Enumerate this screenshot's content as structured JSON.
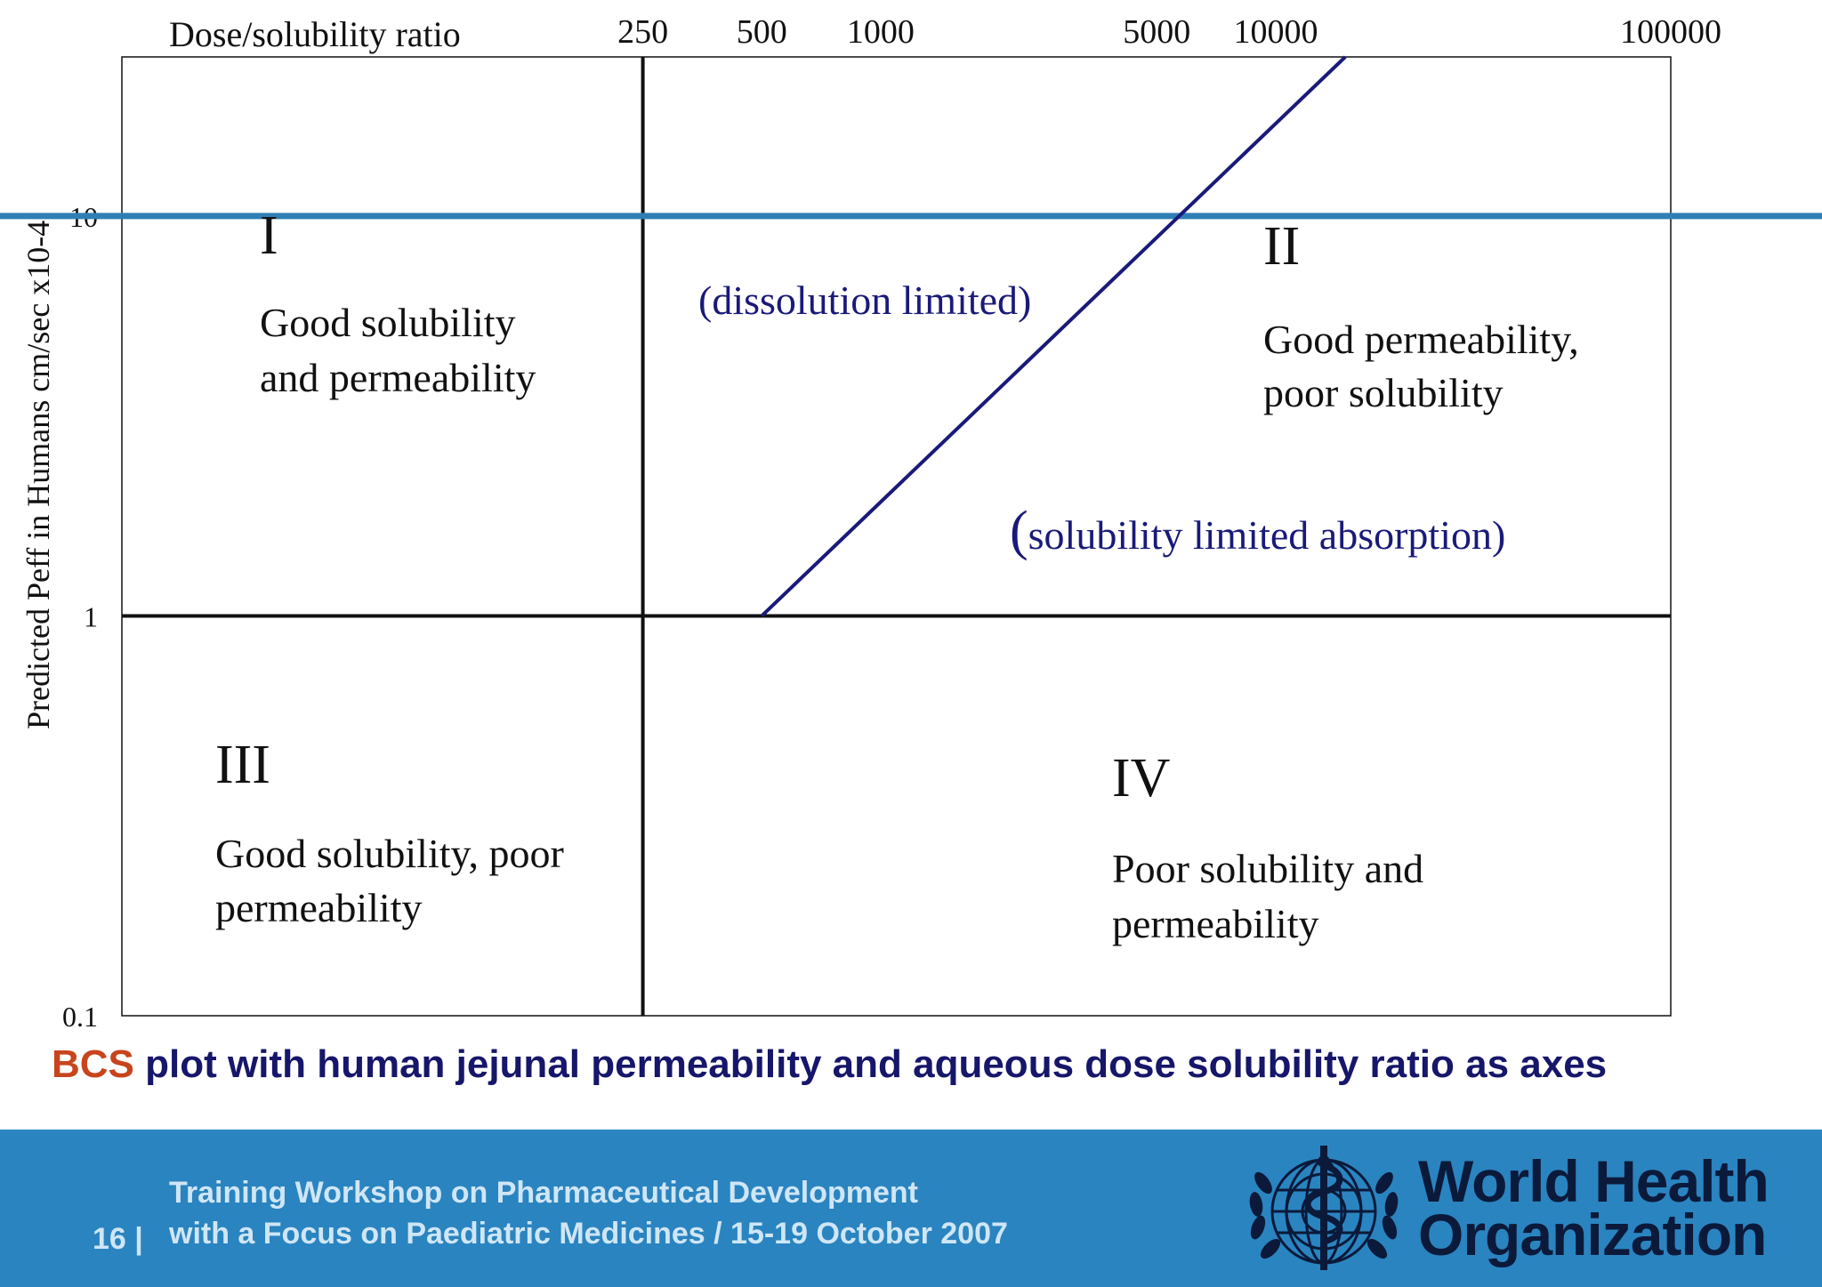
{
  "chart_data": {
    "type": "scatter",
    "title": "",
    "xlabel": "Dose/solubility ratio",
    "ylabel": "Predicted  Peff in Humans cm/sec x10-4",
    "x_scale": "log",
    "y_scale": "log",
    "x_ticks": [
      250,
      500,
      1000,
      5000,
      10000,
      100000
    ],
    "y_ticks": [
      0.1,
      1,
      10
    ],
    "xlim": [
      12,
      100000
    ],
    "ylim": [
      0.1,
      25
    ],
    "boundaries": {
      "vertical_x": 250,
      "horizontal_y": 1,
      "highlight_y": 10
    },
    "series": [
      {
        "name": "dissolution/solubility limit line",
        "x": [
          500,
          15000
        ],
        "y": [
          1,
          25
        ]
      }
    ],
    "quadrants": [
      {
        "id": "I",
        "label": "I",
        "line1": "Good solubility",
        "line2": "and permeability"
      },
      {
        "id": "II",
        "label": "II",
        "line1": "Good permeability,",
        "line2": "poor solubility"
      },
      {
        "id": "III",
        "label": "III",
        "line1": "Good solubility, poor",
        "line2": "permeability"
      },
      {
        "id": "IV",
        "label": "IV",
        "line1": "Poor solubility and",
        "line2": "permeability"
      }
    ],
    "annotations": {
      "dissolution": "(dissolution limited)",
      "solubility_paren": "(",
      "solubility": "solubility limited absorption)"
    },
    "colors": {
      "axis": "#111111",
      "diagonal": "#1a1a7a",
      "highlight": "#2f7fb5"
    }
  },
  "caption": {
    "acronym": "BCS",
    "text": " plot with human jejunal permeability and aqueous dose solubility ratio as axes"
  },
  "footer": {
    "line1": "Training Workshop on Pharmaceutical Development",
    "line2": "with a Focus on Paediatric Medicines / 15-19 October 2007",
    "page": "16 |",
    "org_line1": "World Health",
    "org_line2": "Organization",
    "emblem": "who-emblem-icon",
    "background": "#2a84c0"
  }
}
